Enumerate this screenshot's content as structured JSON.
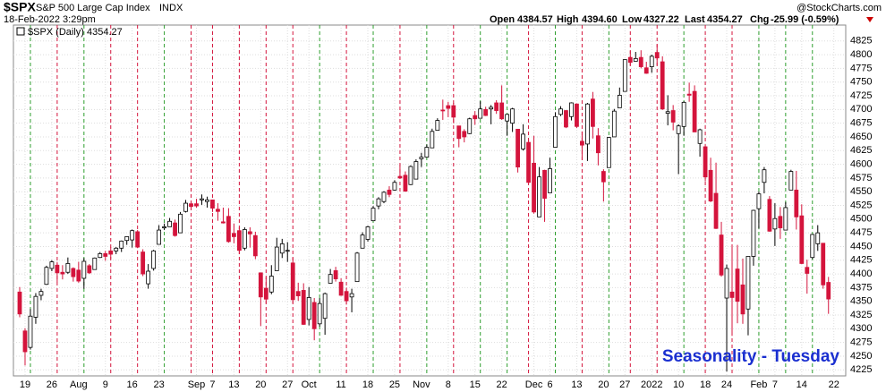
{
  "header": {
    "symbol": "$SPX",
    "name": "S&P 500 Large Cap Index",
    "exchange": "INDX",
    "timestamp": "18-Feb-2022 3:29pm",
    "open_label": "Open",
    "open": "4384.57",
    "high_label": "High",
    "high": "4394.60",
    "low_label": "Low",
    "low": "4327.22",
    "last_label": "Last",
    "last": "4354.27",
    "chg_label": "Chg",
    "chg": "-25.99 (-0.59%)",
    "watermark": "@StockCharts.com"
  },
  "chart_data": {
    "type": "candlestick",
    "legend": "$SPX (Daily) 4354.27",
    "annotation": "Seasonality - Tuesday",
    "up_color": "#000000",
    "down_color": "#d4143c",
    "up_line_color": "#2e9e2e",
    "down_line_color": "#d4143c",
    "grid": true,
    "ylim": [
      4214,
      4854
    ],
    "yticks": [
      4225,
      4250,
      4275,
      4300,
      4325,
      4350,
      4375,
      4400,
      4425,
      4450,
      4475,
      4500,
      4525,
      4550,
      4575,
      4600,
      4625,
      4650,
      4675,
      4700,
      4725,
      4750,
      4775,
      4800,
      4825
    ],
    "categories": [
      null,
      "19",
      null,
      null,
      null,
      null,
      "26",
      null,
      null,
      null,
      null,
      "Aug",
      null,
      null,
      null,
      null,
      "9",
      null,
      null,
      null,
      null,
      "16",
      null,
      null,
      null,
      null,
      "23",
      null,
      null,
      null,
      null,
      null,
      null,
      "Sep",
      null,
      null,
      "7",
      null,
      null,
      null,
      "13",
      null,
      null,
      null,
      null,
      "20",
      null,
      null,
      null,
      null,
      "27",
      null,
      null,
      null,
      "Oct",
      null,
      null,
      null,
      null,
      null,
      "11",
      null,
      null,
      null,
      null,
      "18",
      null,
      null,
      null,
      null,
      "25",
      null,
      null,
      null,
      null,
      "Nov",
      null,
      null,
      null,
      null,
      "8",
      null,
      null,
      null,
      null,
      "15",
      null,
      null,
      null,
      null,
      "22",
      null,
      null,
      null,
      null,
      null,
      "Dec",
      null,
      null,
      "6",
      null,
      null,
      null,
      null,
      "13",
      null,
      null,
      null,
      null,
      "20",
      null,
      null,
      null,
      "27",
      null,
      null,
      null,
      null,
      "2022",
      null,
      null,
      null,
      null,
      "10",
      null,
      null,
      null,
      null,
      "18",
      null,
      null,
      null,
      "24",
      null,
      null,
      null,
      null,
      null,
      "Feb",
      null,
      null,
      "7",
      null,
      null,
      null,
      null,
      "14",
      null,
      null,
      null,
      null,
      null,
      "22"
    ],
    "tuesday_lines": [
      2,
      7,
      12,
      17,
      22,
      27,
      32,
      36,
      41,
      46,
      51,
      56,
      61,
      66,
      71,
      76,
      81,
      86,
      91,
      95,
      100,
      105,
      110,
      114,
      119,
      124,
      128,
      133,
      138,
      143,
      148
    ],
    "open": [
      4367,
      4296,
      4266,
      4321,
      4361,
      4381,
      4410,
      4416,
      4403,
      4403,
      4410,
      4407,
      4392,
      4415,
      4408,
      4430,
      4437,
      4442,
      4442,
      4447,
      4461,
      4462,
      4477,
      4440,
      4382,
      4410,
      4454,
      4484,
      4486,
      4493,
      4475,
      4514,
      4528,
      4528,
      4535,
      4532,
      4535,
      4518,
      4495,
      4505,
      4474,
      4479,
      4447,
      4477,
      4470,
      4402,
      4374,
      4367,
      4406,
      4438,
      4442,
      4420,
      4368,
      4370,
      4317,
      4348,
      4309,
      4319,
      4383,
      4406,
      4385,
      4368,
      4358,
      4386,
      4447,
      4463,
      4497,
      4524,
      4532,
      4553,
      4553,
      4578,
      4580,
      4563,
      4573,
      4610,
      4613,
      4630,
      4662,
      4699,
      4707,
      4707,
      4670,
      4660,
      4656,
      4689,
      4684,
      4700,
      4701,
      4712,
      4712,
      4679,
      4675,
      4664,
      4628,
      4640,
      4602,
      4504,
      4589,
      4548,
      4631,
      4691,
      4698,
      4687,
      4710,
      4642,
      4637,
      4719,
      4652,
      4587,
      4594,
      4650,
      4703,
      4733,
      4795,
      4788,
      4795,
      4776,
      4778,
      4804,
      4787,
      4693,
      4698,
      4656,
      4669,
      4728,
      4733,
      4638,
      4632,
      4589,
      4547,
      4471,
      4356,
      4367,
      4409,
      4380,
      4336,
      4432,
      4519,
      4567,
      4536,
      4482,
      4505,
      4480,
      4553,
      4553,
      4506,
      4412,
      4430,
      4455,
      4456,
      4384.57,
      null
    ],
    "high": [
      4376,
      4301,
      4336,
      4365,
      4373,
      4415,
      4425,
      4422,
      4416,
      4430,
      4412,
      4422,
      4429,
      4418,
      4430,
      4440,
      4442,
      4449,
      4449,
      4461,
      4468,
      4481,
      4480,
      4445,
      4418,
      4444,
      4489,
      4492,
      4502,
      4499,
      4513,
      4535,
      4531,
      4537,
      4545,
      4541,
      4535,
      4529,
      4521,
      4520,
      4492,
      4485,
      4485,
      4485,
      4477,
      4402,
      4394,
      4416,
      4466,
      4464,
      4458,
      4430,
      4384,
      4383,
      4376,
      4356,
      4356,
      4366,
      4409,
      4413,
      4392,
      4375,
      4373,
      4440,
      4476,
      4488,
      4524,
      4540,
      4551,
      4560,
      4571,
      4599,
      4587,
      4598,
      4609,
      4621,
      4636,
      4665,
      4684,
      4718,
      4714,
      4712,
      4670,
      4664,
      4685,
      4697,
      4715,
      4705,
      4708,
      4717,
      4744,
      4692,
      4703,
      4664,
      4673,
      4646,
      4652,
      4595,
      4590,
      4612,
      4695,
      4706,
      4699,
      4713,
      4711,
      4660,
      4712,
      4732,
      4666,
      4591,
      4650,
      4701,
      4740,
      4791,
      4807,
      4805,
      4808,
      4787,
      4800,
      4819,
      4797,
      4726,
      4708,
      4673,
      4715,
      4749,
      4744,
      4665,
      4632,
      4612,
      4603,
      4495,
      4417,
      4453,
      4453,
      4428,
      4432,
      4517,
      4550,
      4595,
      4542,
      4529,
      4522,
      4531,
      4590,
      4588,
      4527,
      4426,
      4473,
      4489,
      4456,
      4394.6,
      null
    ],
    "low": [
      4321,
      4233,
      4262,
      4309,
      4352,
      4380,
      4405,
      4385,
      4390,
      4400,
      4386,
      4384,
      4373,
      4400,
      4408,
      4429,
      4424,
      4427,
      4436,
      4440,
      4453,
      4448,
      4447,
      4396,
      4373,
      4406,
      4454,
      4480,
      4486,
      4468,
      4475,
      4512,
      4518,
      4521,
      4526,
      4521,
      4513,
      4497,
      4492,
      4457,
      4456,
      4436,
      4443,
      4448,
      4427,
      4305,
      4346,
      4363,
      4406,
      4429,
      4422,
      4346,
      4351,
      4307,
      4306,
      4279,
      4304,
      4289,
      4383,
      4386,
      4360,
      4344,
      4330,
      4386,
      4447,
      4459,
      4497,
      4518,
      4529,
      4540,
      4552,
      4574,
      4550,
      4562,
      4573,
      4595,
      4612,
      4630,
      4662,
      4681,
      4686,
      4675,
      4631,
      4640,
      4655,
      4672,
      4684,
      4688,
      4673,
      4692,
      4681,
      4652,
      4659,
      4585,
      4625,
      4566,
      4510,
      4504,
      4495,
      4548,
      4631,
      4688,
      4666,
      4680,
      4666,
      4608,
      4606,
      4647,
      4598,
      4532,
      4594,
      4650,
      4703,
      4733,
      4780,
      4788,
      4775,
      4765,
      4767,
      4780,
      4699,
      4671,
      4662,
      4582,
      4652,
      4714,
      4659,
      4614,
      4569,
      4531,
      4482,
      4395,
      4222,
      4287,
      4310,
      4309,
      4288,
      4415,
      4483,
      4547,
      4477,
      4451,
      4464,
      4480,
      4553,
      4481,
      4418,
      4364,
      4427,
      4442,
      4373,
      4327.22,
      null
    ],
    "close": [
      4327,
      4258,
      4323,
      4359,
      4368,
      4412,
      4422,
      4402,
      4400,
      4419,
      4395,
      4387,
      4423,
      4402,
      4429,
      4437,
      4432,
      4436,
      4447,
      4460,
      4468,
      4479,
      4449,
      4400,
      4405,
      4442,
      4480,
      4486,
      4496,
      4470,
      4509,
      4529,
      4523,
      4524,
      4537,
      4535,
      4520,
      4514,
      4493,
      4459,
      4468,
      4443,
      4481,
      4473,
      4433,
      4358,
      4354,
      4396,
      4449,
      4455,
      4443,
      4353,
      4360,
      4308,
      4357,
      4300,
      4346,
      4364,
      4399,
      4391,
      4361,
      4351,
      4364,
      4438,
      4471,
      4486,
      4520,
      4537,
      4549,
      4545,
      4567,
      4575,
      4551,
      4596,
      4605,
      4613,
      4631,
      4660,
      4680,
      4698,
      4702,
      4686,
      4647,
      4650,
      4683,
      4683,
      4701,
      4689,
      4704,
      4698,
      4683,
      4691,
      4701,
      4595,
      4655,
      4567,
      4513,
      4577,
      4538,
      4592,
      4687,
      4701,
      4668,
      4712,
      4669,
      4635,
      4710,
      4669,
      4621,
      4568,
      4649,
      4697,
      4726,
      4791,
      4786,
      4793,
      4778,
      4766,
      4797,
      4794,
      4701,
      4696,
      4677,
      4670,
      4713,
      4726,
      4659,
      4663,
      4577,
      4533,
      4483,
      4398,
      4410,
      4357,
      4350,
      4327,
      4432,
      4516,
      4546,
      4590,
      4478,
      4501,
      4484,
      4521,
      4587,
      4504,
      4419,
      4401,
      4472,
      4475,
      4380,
      4354.27,
      null
    ]
  }
}
